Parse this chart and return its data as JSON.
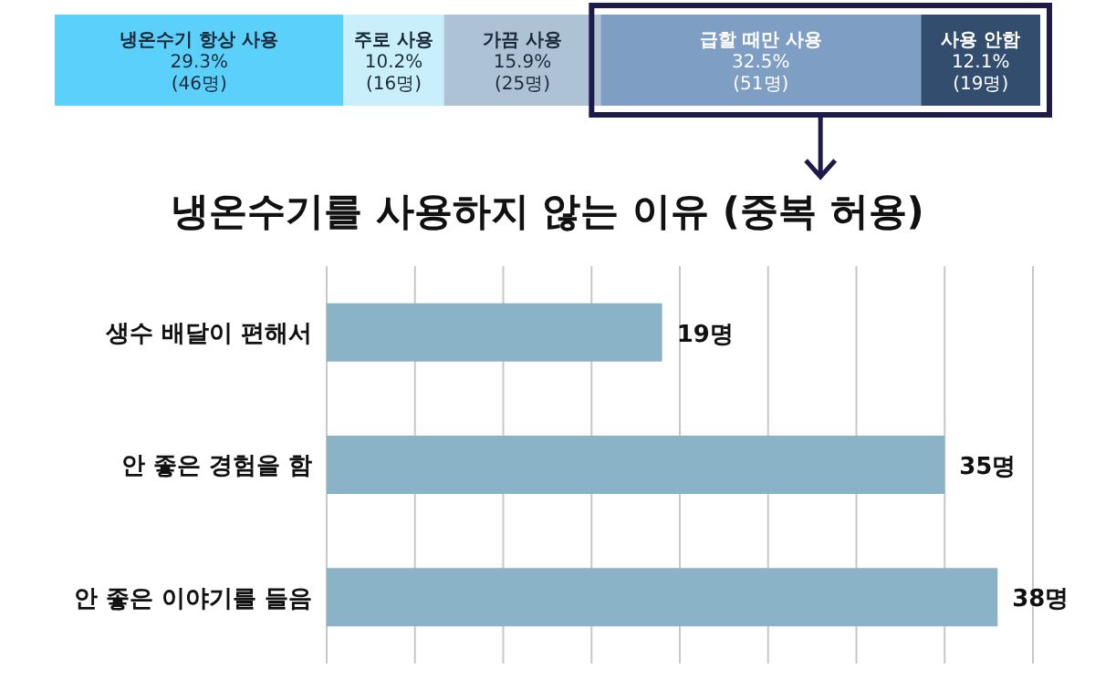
{
  "chart_data": [
    {
      "type": "bar",
      "orientation": "horizontal",
      "stacked": true,
      "categories": [
        null
      ],
      "xlim": [
        0,
        100
      ],
      "tick_labels": false,
      "legend": false,
      "series": [
        {
          "name": "냉온수기 항상 사용",
          "color": "#5bd0fb",
          "values": [
            29.3
          ],
          "value_labels": [
            "29.3%(46명)"
          ]
        },
        {
          "name": "주로 사용",
          "color": "#c9eefc",
          "values": [
            10.2
          ],
          "value_labels": [
            "10.2%(16명)"
          ]
        },
        {
          "name": "가끔 사용",
          "color": "#aec2d6",
          "values": [
            15.9
          ],
          "value_labels": [
            "15.9%(25명)"
          ]
        },
        {
          "name": "급할 때만 사용",
          "color": "#7e9ec4",
          "values": [
            32.5
          ],
          "value_labels": [
            "32.5%(51명)"
          ]
        },
        {
          "name": "사용 안함",
          "color": "#334d6e",
          "values": [
            12.1
          ],
          "value_labels": [
            "12.1%(19명)"
          ]
        }
      ]
    },
    {
      "type": "bar",
      "orientation": "horizontal",
      "title": "냉온수기를 사용하지 않는 이유 (중복 허용)",
      "categories": [
        "생수 배달이 편해서",
        "안 좋은 경험을 함",
        "안 좋은 이야기를 들음"
      ],
      "series": [
        {
          "color": "#8bb3c8",
          "values": [
            19,
            35,
            38
          ],
          "value_labels": [
            "19명",
            "35명",
            "38명"
          ]
        }
      ],
      "xlim": [
        0,
        40
      ],
      "xticks": [
        {
          "value": 0,
          "label": null
        },
        {
          "value": 5,
          "label": null
        },
        {
          "value": 10,
          "label": null
        },
        {
          "value": 15,
          "label": null
        },
        {
          "value": 20,
          "label": null
        },
        {
          "value": 25,
          "label": null
        },
        {
          "value": 30,
          "label": null
        },
        {
          "value": 35,
          "label": null
        },
        {
          "value": 40,
          "label": null
        }
      ],
      "grid": "x",
      "tick_labels": "y",
      "legend": false
    }
  ]
}
